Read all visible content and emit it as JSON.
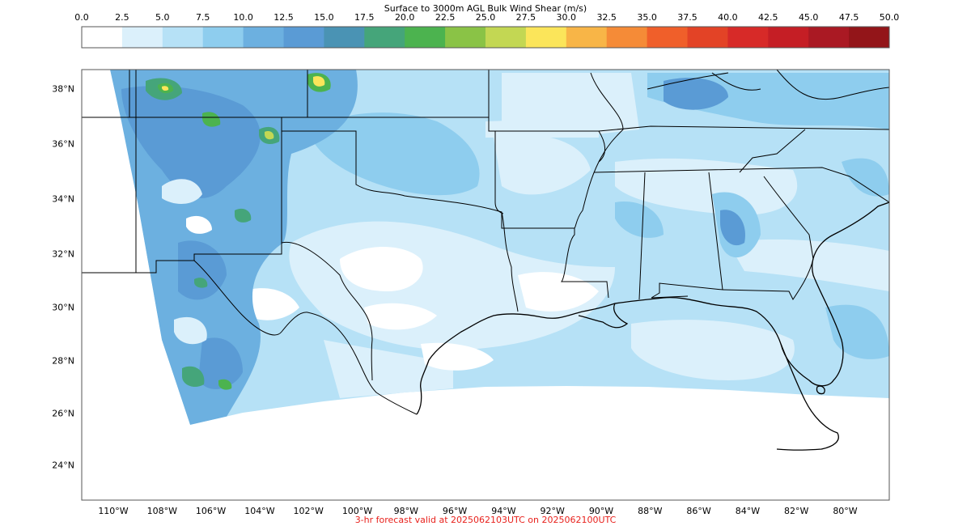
{
  "title": "Surface to 3000m AGL Bulk Wind Shear (m/s)",
  "colorbar": {
    "ticks": [
      "0.0",
      "2.5",
      "5.0",
      "7.5",
      "10.0",
      "12.5",
      "15.0",
      "17.5",
      "20.0",
      "22.5",
      "25.0",
      "27.5",
      "30.0",
      "32.5",
      "35.0",
      "37.5",
      "40.0",
      "42.5",
      "45.0",
      "47.5",
      "50.0"
    ],
    "colors": [
      "#ffffff",
      "#dbf0fb",
      "#b6e1f6",
      "#8ecdee",
      "#6cb0e0",
      "#5a9bd5",
      "#4a93b4",
      "#45a57a",
      "#4cb34f",
      "#8ac346",
      "#c3d753",
      "#fbe55a",
      "#f8b547",
      "#f58b37",
      "#f05f2a",
      "#e34326",
      "#d72a28",
      "#c51e25",
      "#aa1923",
      "#931519"
    ]
  },
  "latitude_labels": [
    "38°N",
    "36°N",
    "34°N",
    "32°N",
    "30°N",
    "28°N",
    "26°N",
    "24°N"
  ],
  "longitude_labels": [
    "110°W",
    "108°W",
    "106°W",
    "104°W",
    "102°W",
    "100°W",
    "98°W",
    "96°W",
    "94°W",
    "92°W",
    "90°W",
    "88°W",
    "86°W",
    "84°W",
    "82°W",
    "80°W"
  ],
  "footer": "3-hr forecast valid at 2025062103UTC on 2025062100UTC",
  "footer_color": "#e8211c"
}
